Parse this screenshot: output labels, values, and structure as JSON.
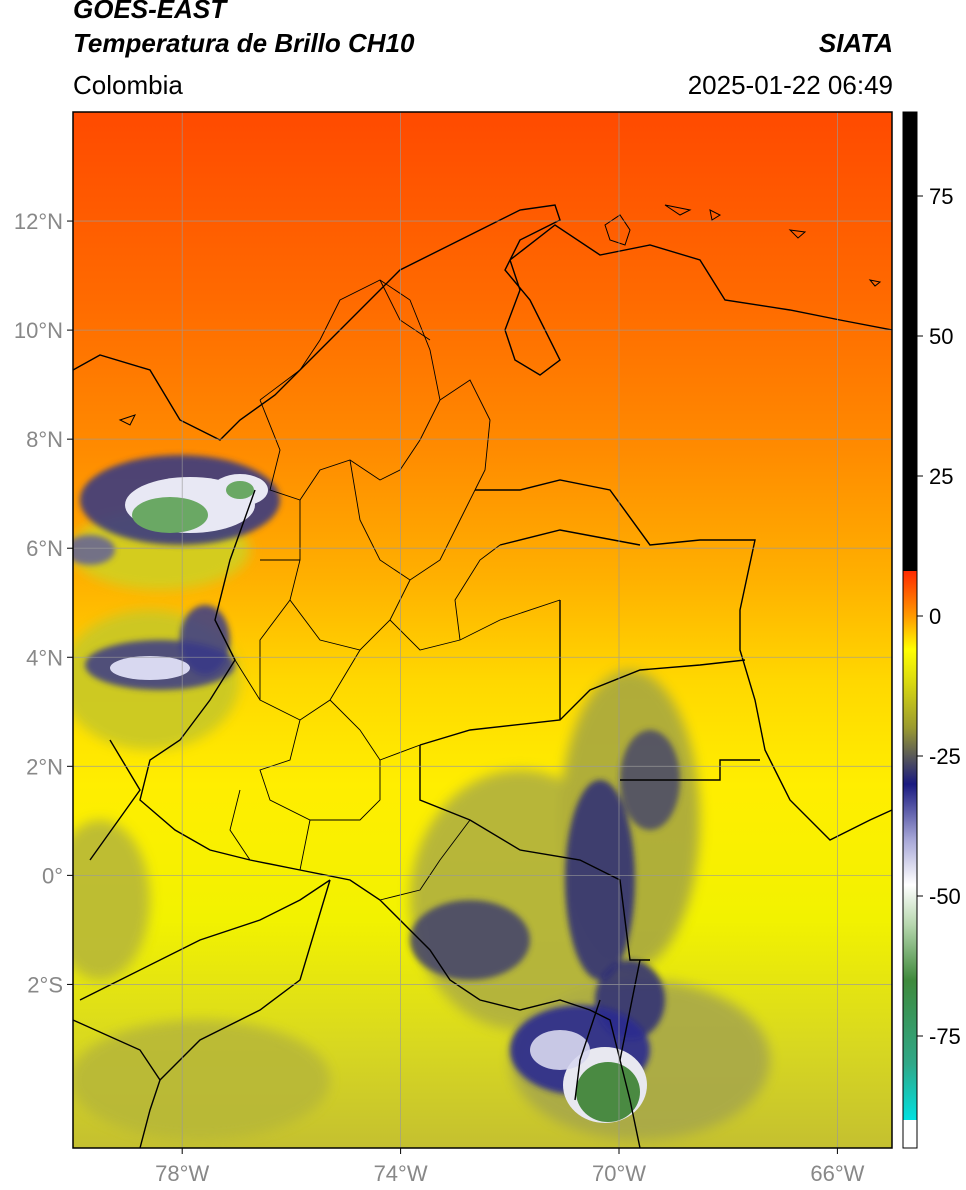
{
  "header": {
    "title_line1": "GOES-EAST",
    "title_line2": "Temperatura de Brillo CH10",
    "source": "SIATA",
    "region": "Colombia",
    "datetime": "2025-01-22 06:49"
  },
  "map": {
    "lon_range": [
      -80,
      -65
    ],
    "lat_range": [
      -5,
      14
    ],
    "lon_ticks": [
      {
        "value": -78,
        "label": "78°W"
      },
      {
        "value": -74,
        "label": "74°W"
      },
      {
        "value": -70,
        "label": "70°W"
      },
      {
        "value": -66,
        "label": "66°W"
      }
    ],
    "lat_ticks": [
      {
        "value": 12,
        "label": "12°N"
      },
      {
        "value": 10,
        "label": "10°N"
      },
      {
        "value": 8,
        "label": "8°N"
      },
      {
        "value": 6,
        "label": "6°N"
      },
      {
        "value": 4,
        "label": "4°N"
      },
      {
        "value": 2,
        "label": "2°N"
      },
      {
        "value": 0,
        "label": "0°"
      },
      {
        "value": -2,
        "label": "2°S"
      }
    ],
    "grid": true
  },
  "colorbar": {
    "range": [
      -95,
      90
    ],
    "ticks": [
      {
        "value": 75,
        "label": "75"
      },
      {
        "value": 50,
        "label": "50"
      },
      {
        "value": 25,
        "label": "25"
      },
      {
        "value": 0,
        "label": "0"
      },
      {
        "value": -25,
        "label": "-25"
      },
      {
        "value": -50,
        "label": "-50"
      },
      {
        "value": -75,
        "label": "-75"
      }
    ],
    "stops": [
      {
        "value": -95,
        "color": "#ffffff"
      },
      {
        "value": -90,
        "color": "#ffffff"
      },
      {
        "value": -90,
        "color": "#00e0e0"
      },
      {
        "value": -80,
        "color": "#2fa888"
      },
      {
        "value": -65,
        "color": "#3f8a3c"
      },
      {
        "value": -55,
        "color": "#b8d8b0"
      },
      {
        "value": -48,
        "color": "#ffffff"
      },
      {
        "value": -40,
        "color": "#a8a8d8"
      },
      {
        "value": -30,
        "color": "#1a1a80"
      },
      {
        "value": -20,
        "color": "#9a9a30"
      },
      {
        "value": -12,
        "color": "#d8d810"
      },
      {
        "value": -6,
        "color": "#ffff00"
      },
      {
        "value": 0,
        "color": "#ff9a00"
      },
      {
        "value": 8,
        "color": "#ff2a00"
      },
      {
        "value": 8,
        "color": "#000000"
      },
      {
        "value": 90,
        "color": "#000000"
      }
    ]
  }
}
